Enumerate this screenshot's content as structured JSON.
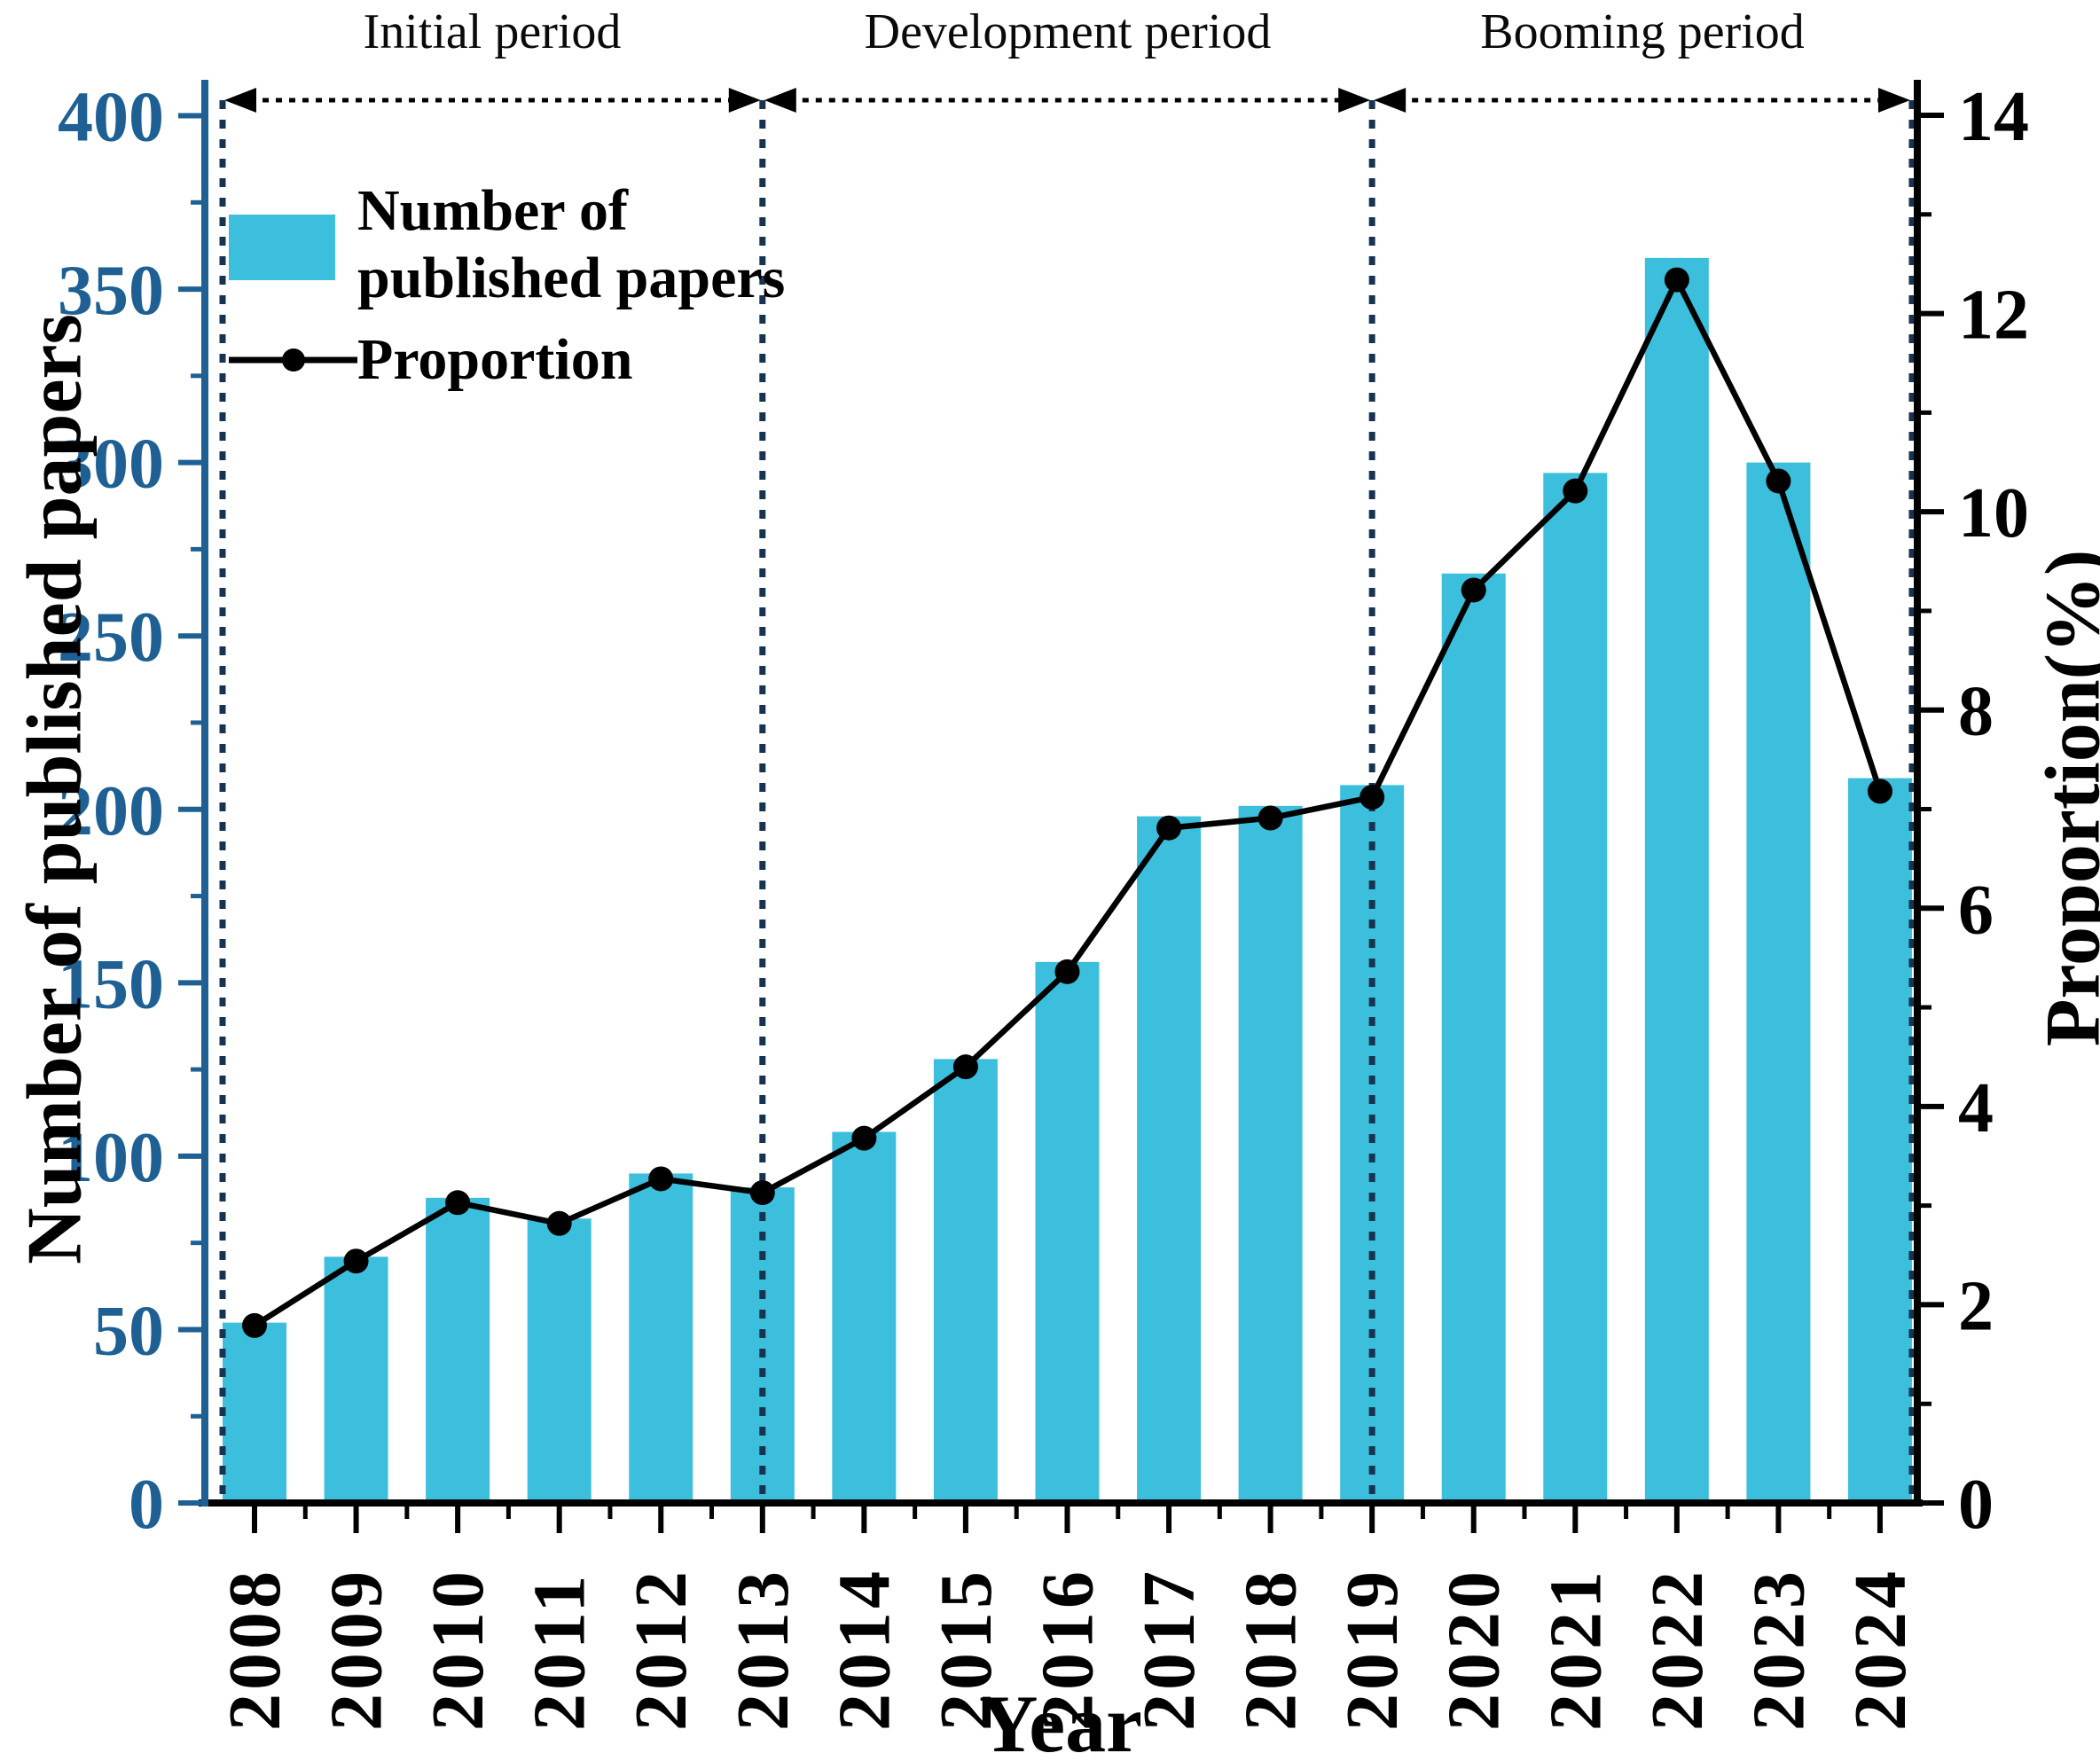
{
  "chart_data": {
    "type": "bar+line",
    "categories": [
      "2008",
      "2009",
      "2010",
      "2011",
      "2012",
      "2013",
      "2014",
      "2015",
      "2016",
      "2017",
      "2018",
      "2019",
      "2020",
      "2021",
      "2022",
      "2023",
      "2024"
    ],
    "series": [
      {
        "name": "Number of published papers",
        "type": "bar",
        "axis": "left",
        "values": [
          52,
          71,
          88,
          82,
          95,
          91,
          107,
          128,
          156,
          198,
          201,
          207,
          268,
          297,
          359,
          300,
          209
        ]
      },
      {
        "name": "Proportion",
        "type": "line",
        "axis": "right",
        "values": [
          1.79,
          2.44,
          3.03,
          2.82,
          3.27,
          3.13,
          3.68,
          4.4,
          5.36,
          6.81,
          6.91,
          7.12,
          9.21,
          10.21,
          12.34,
          10.31,
          7.18
        ]
      }
    ],
    "xlabel": "Year",
    "ylabel_left": "Number of published papers",
    "ylabel_right": "Proportion(%)",
    "ylim_left": [
      0,
      400
    ],
    "ylim_right": [
      0,
      14
    ],
    "yticks_left": [
      0,
      50,
      100,
      150,
      200,
      250,
      300,
      350,
      400
    ],
    "yticks_right": [
      0,
      2,
      4,
      6,
      8,
      10,
      12,
      14
    ],
    "grid": false,
    "legend_position": "upper-left",
    "annotations": {
      "periods": [
        {
          "label": "Initial period",
          "start": "2008",
          "end": "2013"
        },
        {
          "label": "Development period",
          "start": "2013",
          "end": "2019"
        },
        {
          "label": "Booming period",
          "start": "2019",
          "end": "2024"
        }
      ]
    }
  },
  "legend": {
    "bar_label_line1": "Number of",
    "bar_label_line2": "published papers",
    "line_label": "Proportion"
  },
  "colors": {
    "bar": "#3cbfdc",
    "axis_left": "#1e6093",
    "axis_right": "#000000",
    "line": "#000000",
    "dotted_guides": "#17334f"
  }
}
